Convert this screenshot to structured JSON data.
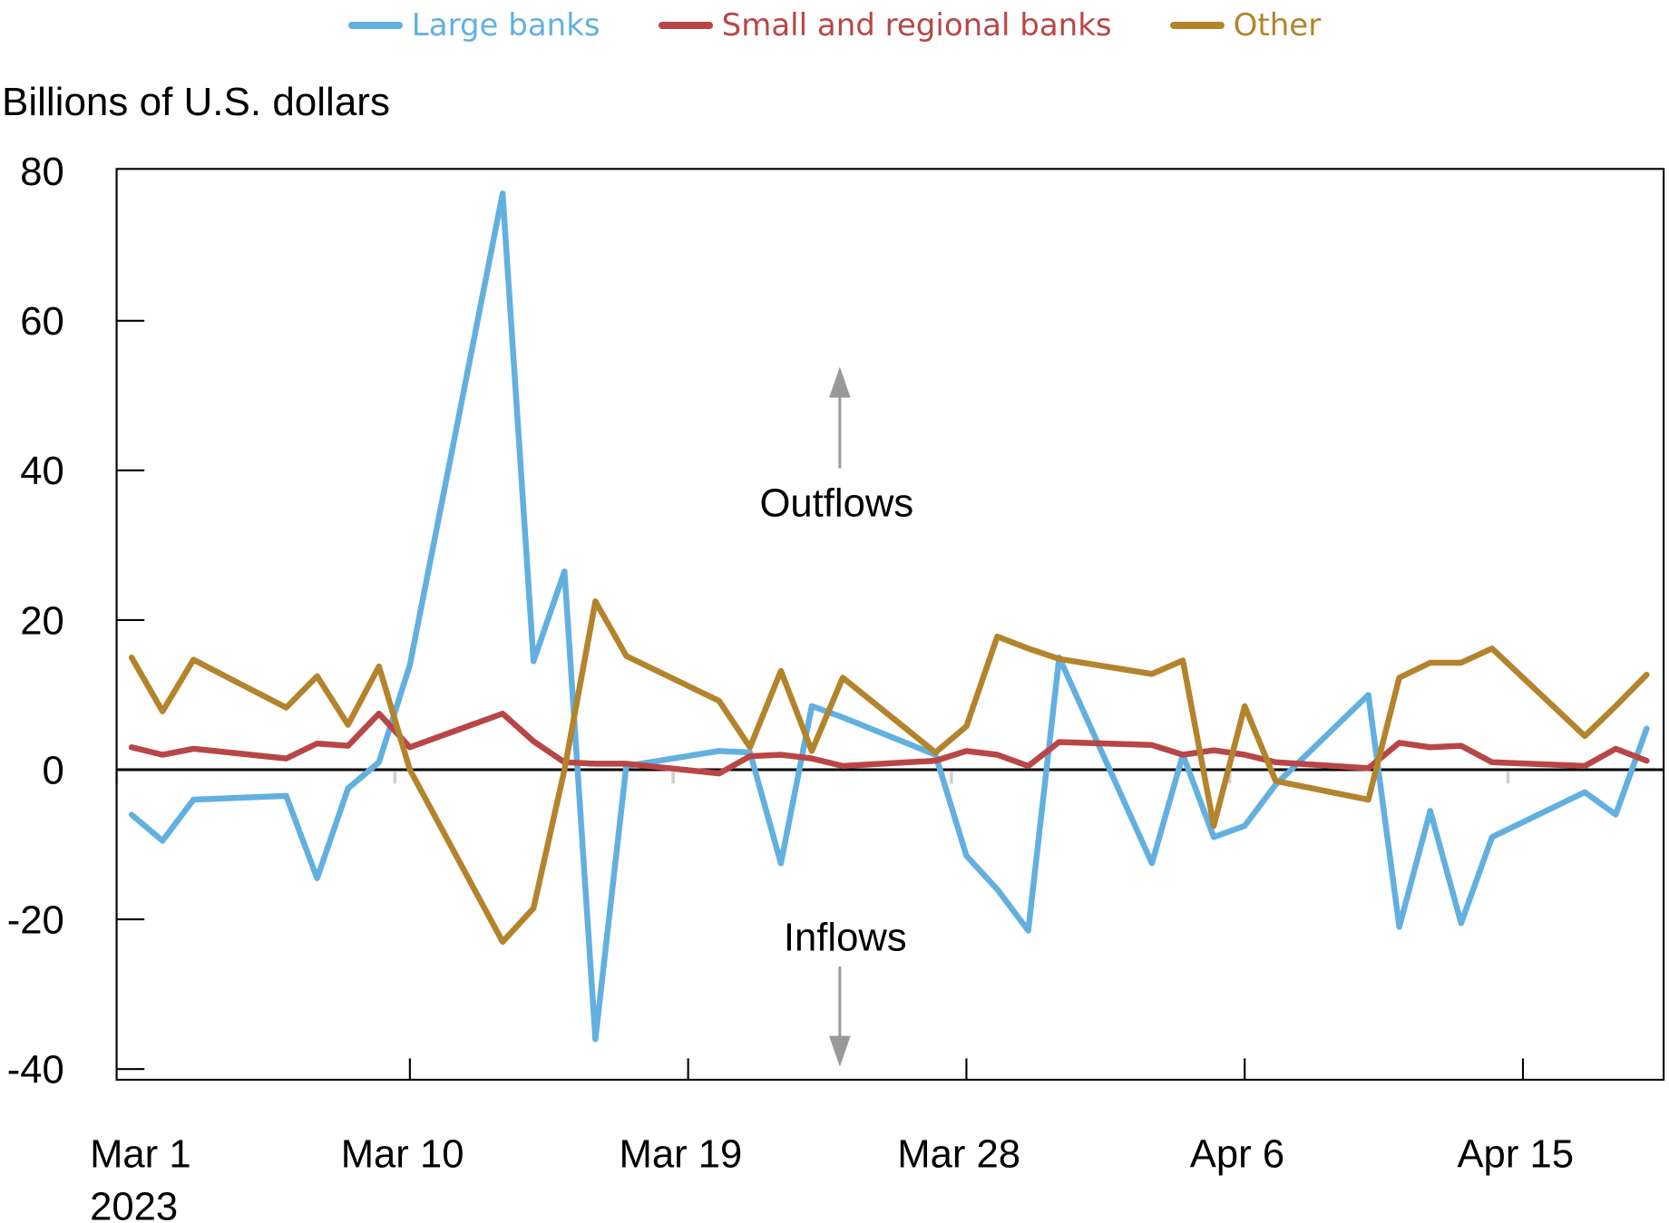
{
  "legend": [
    {
      "label": "Large banks",
      "color": "#62b0e0"
    },
    {
      "label": "Small and regional banks",
      "color": "#b94646"
    },
    {
      "label": "Other",
      "color": "#b3842c"
    }
  ],
  "annotations": {
    "up_label": "Outflows",
    "down_label": "Inflows",
    "arrow_color": "#999999"
  },
  "chart_data": {
    "type": "line",
    "title": "",
    "xlabel": "",
    "ylabel": "Billions of U.S. dollars",
    "ylim": [
      -40,
      80
    ],
    "yticks": [
      -40,
      -20,
      0,
      20,
      40,
      60,
      80
    ],
    "xtick_labels": [
      {
        "day": 0,
        "label": "Mar 1",
        "sublabel": "2023"
      },
      {
        "day": 9,
        "label": "Mar 10"
      },
      {
        "day": 18,
        "label": "Mar 19"
      },
      {
        "day": 27,
        "label": "Mar 28"
      },
      {
        "day": 36,
        "label": "Apr 6"
      },
      {
        "day": 45,
        "label": "Apr 15"
      }
    ],
    "grid": false,
    "legend_position": "top",
    "x": [
      "Mar 1",
      "Mar 2",
      "Mar 3",
      "Mar 6",
      "Mar 7",
      "Mar 8",
      "Mar 9",
      "Mar 10",
      "Mar 13",
      "Mar 14",
      "Mar 15",
      "Mar 16",
      "Mar 17",
      "Mar 20",
      "Mar 21",
      "Mar 22",
      "Mar 23",
      "Mar 24",
      "Mar 27",
      "Mar 28",
      "Mar 29",
      "Mar 30",
      "Mar 31",
      "Apr 3",
      "Apr 4",
      "Apr 5",
      "Apr 6",
      "Apr 7",
      "Apr 10",
      "Apr 11",
      "Apr 12",
      "Apr 13",
      "Apr 14",
      "Apr 17",
      "Apr 18",
      "Apr 19"
    ],
    "x_day_index": [
      0,
      1,
      2,
      5,
      6,
      7,
      8,
      9,
      12,
      13,
      14,
      15,
      16,
      19,
      20,
      21,
      22,
      23,
      26,
      27,
      28,
      29,
      30,
      33,
      34,
      35,
      36,
      37,
      40,
      41,
      42,
      43,
      44,
      47,
      48,
      49
    ],
    "series": [
      {
        "name": "Large banks",
        "color": "#62b0e0",
        "values": [
          -6,
          -9.5,
          -4,
          -3.5,
          -14.5,
          -2.5,
          1,
          14,
          77,
          14.5,
          26.5,
          -36,
          0.5,
          2.5,
          2.3,
          -12.5,
          8.5,
          7,
          2,
          -11.5,
          -16,
          -21.5,
          15,
          -12.5,
          2,
          -9,
          -7.5,
          -2,
          10,
          -21,
          -5.5,
          -20.5,
          -9,
          -3,
          -6,
          5.5
        ]
      },
      {
        "name": "Small and regional banks",
        "color": "#b94646",
        "values": [
          3,
          2,
          2.8,
          1.5,
          3.5,
          3.2,
          7.5,
          3,
          7.5,
          3.8,
          1,
          0.8,
          0.8,
          -0.5,
          1.8,
          2,
          1.5,
          0.5,
          1.2,
          2.5,
          2,
          0.5,
          3.7,
          3.3,
          2,
          2.6,
          2,
          1,
          0.2,
          3.6,
          3,
          3.2,
          1,
          0.5,
          2.8,
          1.2
        ]
      },
      {
        "name": "Other",
        "color": "#b3842c",
        "values": [
          15,
          7.8,
          14.7,
          8.3,
          12.5,
          6,
          13.8,
          0,
          -23,
          -18.5,
          0,
          22.5,
          15.2,
          9.2,
          3,
          13.2,
          2.5,
          12.3,
          2.3,
          5.8,
          17.8,
          16.2,
          14.8,
          12.8,
          14.6,
          -7.5,
          8.5,
          -1.5,
          -4,
          12.3,
          14.3,
          14.3,
          16.2,
          4.5,
          8.5,
          12.7
        ]
      }
    ]
  }
}
